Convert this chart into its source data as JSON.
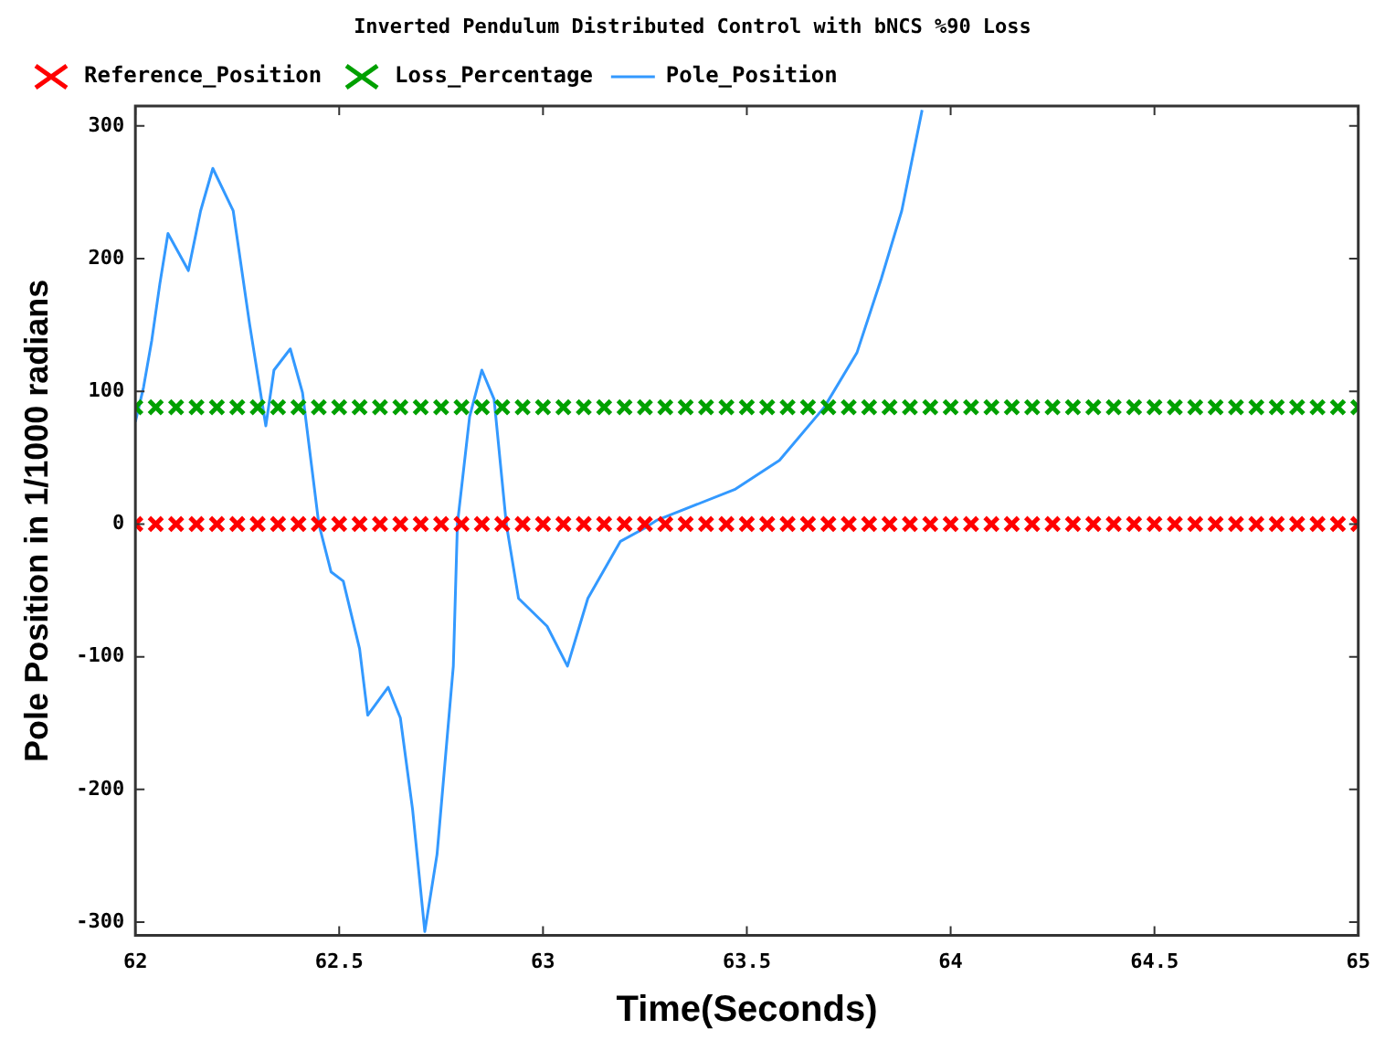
{
  "chart_data": {
    "type": "scatter",
    "title": "Inverted Pendulum Distributed Control with bNCS %90 Loss",
    "xlabel": "Time(Seconds)",
    "ylabel": "Pole Position in 1/1000 radians",
    "x": [
      62,
      62.05,
      62.1,
      62.15,
      62.2,
      62.25,
      62.3,
      62.35,
      62.4,
      62.45,
      62.5,
      62.55,
      62.6,
      62.65,
      62.7,
      62.75,
      62.8,
      62.85,
      62.9,
      62.95,
      63,
      63.05,
      63.1,
      63.15,
      63.2,
      63.25,
      63.3,
      63.35,
      63.4,
      63.45,
      63.5,
      63.55,
      63.6,
      63.65,
      63.7,
      63.75,
      63.8,
      63.85,
      63.9,
      63.95,
      64,
      64.05,
      64.1,
      64.15,
      64.2,
      64.25,
      64.3,
      64.35,
      64.4,
      64.45,
      64.5,
      64.55,
      64.6,
      64.65,
      64.7,
      64.75,
      64.8,
      64.85,
      64.9,
      64.95,
      65
    ],
    "series": [
      {
        "name": "Reference_Position",
        "color": "#ff0000",
        "marker": "cross",
        "values": [
          0,
          0,
          0,
          0,
          0,
          0,
          0,
          0,
          0,
          0,
          0,
          0,
          0,
          0,
          0,
          0,
          0,
          0,
          0,
          0,
          0,
          0,
          0,
          0,
          0,
          0,
          0,
          0,
          0,
          0,
          0,
          0,
          0,
          0,
          0,
          0,
          0,
          0,
          0,
          0,
          0,
          0,
          0,
          0,
          0,
          0,
          0,
          0,
          0,
          0,
          0,
          0,
          0,
          0,
          0,
          0,
          0,
          0,
          0,
          0,
          0
        ]
      },
      {
        "name": "Loss_Percentage",
        "color": "#00a000",
        "marker": "cross",
        "values": [
          88,
          88,
          88,
          88,
          88,
          88,
          88,
          88,
          88,
          88,
          88,
          88,
          88,
          88,
          88,
          88,
          88,
          88,
          88,
          88,
          88,
          88,
          88,
          88,
          88,
          88,
          88,
          88,
          88,
          88,
          88,
          88,
          88,
          88,
          88,
          88,
          88,
          88,
          88,
          88,
          88,
          88,
          88,
          88,
          88,
          88,
          88,
          88,
          88,
          88,
          88,
          88,
          88,
          88,
          88,
          88,
          88,
          88,
          88,
          88,
          88
        ]
      },
      {
        "name": "Pole_Position",
        "type": "line",
        "color": "#3399ff",
        "marker": "none",
        "x": [
          62,
          62.02,
          62.04,
          62.06,
          62.08,
          62.13,
          62.16,
          62.19,
          62.24,
          62.28,
          62.32,
          62.34,
          62.38,
          62.41,
          62.45,
          62.48,
          62.51,
          62.55,
          62.57,
          62.62,
          62.65,
          62.68,
          62.71,
          62.74,
          62.78,
          62.79,
          62.82,
          62.85,
          62.88,
          62.91,
          62.94,
          63.01,
          63.06,
          63.11,
          63.19,
          63.25,
          63.28,
          63.47,
          63.58,
          63.69,
          63.77,
          63.83,
          63.88,
          63.93
        ],
        "values": [
          77,
          103,
          138,
          181,
          219,
          191,
          236,
          268,
          236,
          151,
          74,
          116,
          132,
          99,
          0,
          -36,
          -43,
          -94,
          -144,
          -123,
          -146,
          -215,
          -307,
          -249,
          -107,
          0,
          81,
          116,
          94,
          0,
          -56,
          -77,
          -107,
          -56,
          -13,
          -3,
          3,
          26,
          48,
          88,
          129,
          185,
          236,
          312
        ]
      }
    ],
    "xlim": [
      62,
      65
    ],
    "xticks": [
      62,
      {
        "value": 62.5,
        "label": "62.5"
      },
      63,
      {
        "value": 63.5,
        "label": "63.5"
      },
      64,
      {
        "value": 64.5,
        "label": "64.5"
      },
      65
    ],
    "ylim": [
      -310,
      315
    ],
    "yticks": [
      -300,
      -200,
      -100,
      0,
      100,
      200,
      300
    ],
    "grid": false,
    "legend": "top left"
  }
}
